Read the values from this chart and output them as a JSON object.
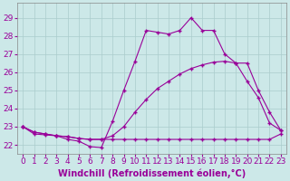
{
  "xlabel": "Windchill (Refroidissement éolien,°C)",
  "bg_color": "#cce8e8",
  "line_color": "#990099",
  "grid_color": "#aacccc",
  "xlim": [
    -0.5,
    23.5
  ],
  "ylim": [
    21.5,
    29.8
  ],
  "xticks": [
    0,
    1,
    2,
    3,
    4,
    5,
    6,
    7,
    8,
    9,
    10,
    11,
    12,
    13,
    14,
    15,
    16,
    17,
    18,
    19,
    20,
    21,
    22,
    23
  ],
  "yticks": [
    22,
    23,
    24,
    25,
    26,
    27,
    28,
    29
  ],
  "line1_x": [
    0,
    1,
    2,
    3,
    4,
    5,
    6,
    7,
    8,
    9,
    10,
    11,
    12,
    13,
    14,
    15,
    16,
    17,
    18,
    19,
    20,
    21,
    22,
    23
  ],
  "line1_y": [
    23.0,
    22.7,
    22.6,
    22.5,
    22.3,
    22.2,
    21.9,
    21.85,
    23.3,
    25.0,
    26.6,
    28.3,
    28.2,
    28.1,
    28.3,
    29.0,
    28.3,
    28.3,
    27.0,
    26.5,
    25.5,
    24.6,
    23.2,
    22.8
  ],
  "line2_x": [
    0,
    1,
    2,
    3,
    4,
    5,
    6,
    7,
    8,
    9,
    10,
    11,
    12,
    13,
    14,
    15,
    16,
    17,
    18,
    19,
    20,
    21,
    22,
    23
  ],
  "line2_y": [
    23.0,
    22.6,
    22.55,
    22.5,
    22.45,
    22.35,
    22.3,
    22.3,
    22.3,
    22.3,
    22.3,
    22.3,
    22.3,
    22.3,
    22.3,
    22.3,
    22.3,
    22.3,
    22.3,
    22.3,
    22.3,
    22.3,
    22.3,
    22.6
  ],
  "line3_x": [
    0,
    1,
    2,
    3,
    4,
    5,
    6,
    7,
    8,
    9,
    10,
    11,
    12,
    13,
    14,
    15,
    16,
    17,
    18,
    19,
    20,
    21,
    22,
    23
  ],
  "line3_y": [
    23.0,
    22.7,
    22.6,
    22.5,
    22.45,
    22.35,
    22.3,
    22.3,
    22.5,
    23.0,
    23.8,
    24.5,
    25.1,
    25.5,
    25.9,
    26.2,
    26.4,
    26.55,
    26.6,
    26.5,
    26.5,
    25.0,
    23.8,
    22.8
  ],
  "xlabel_fontsize": 7,
  "tick_fontsize": 6.5
}
